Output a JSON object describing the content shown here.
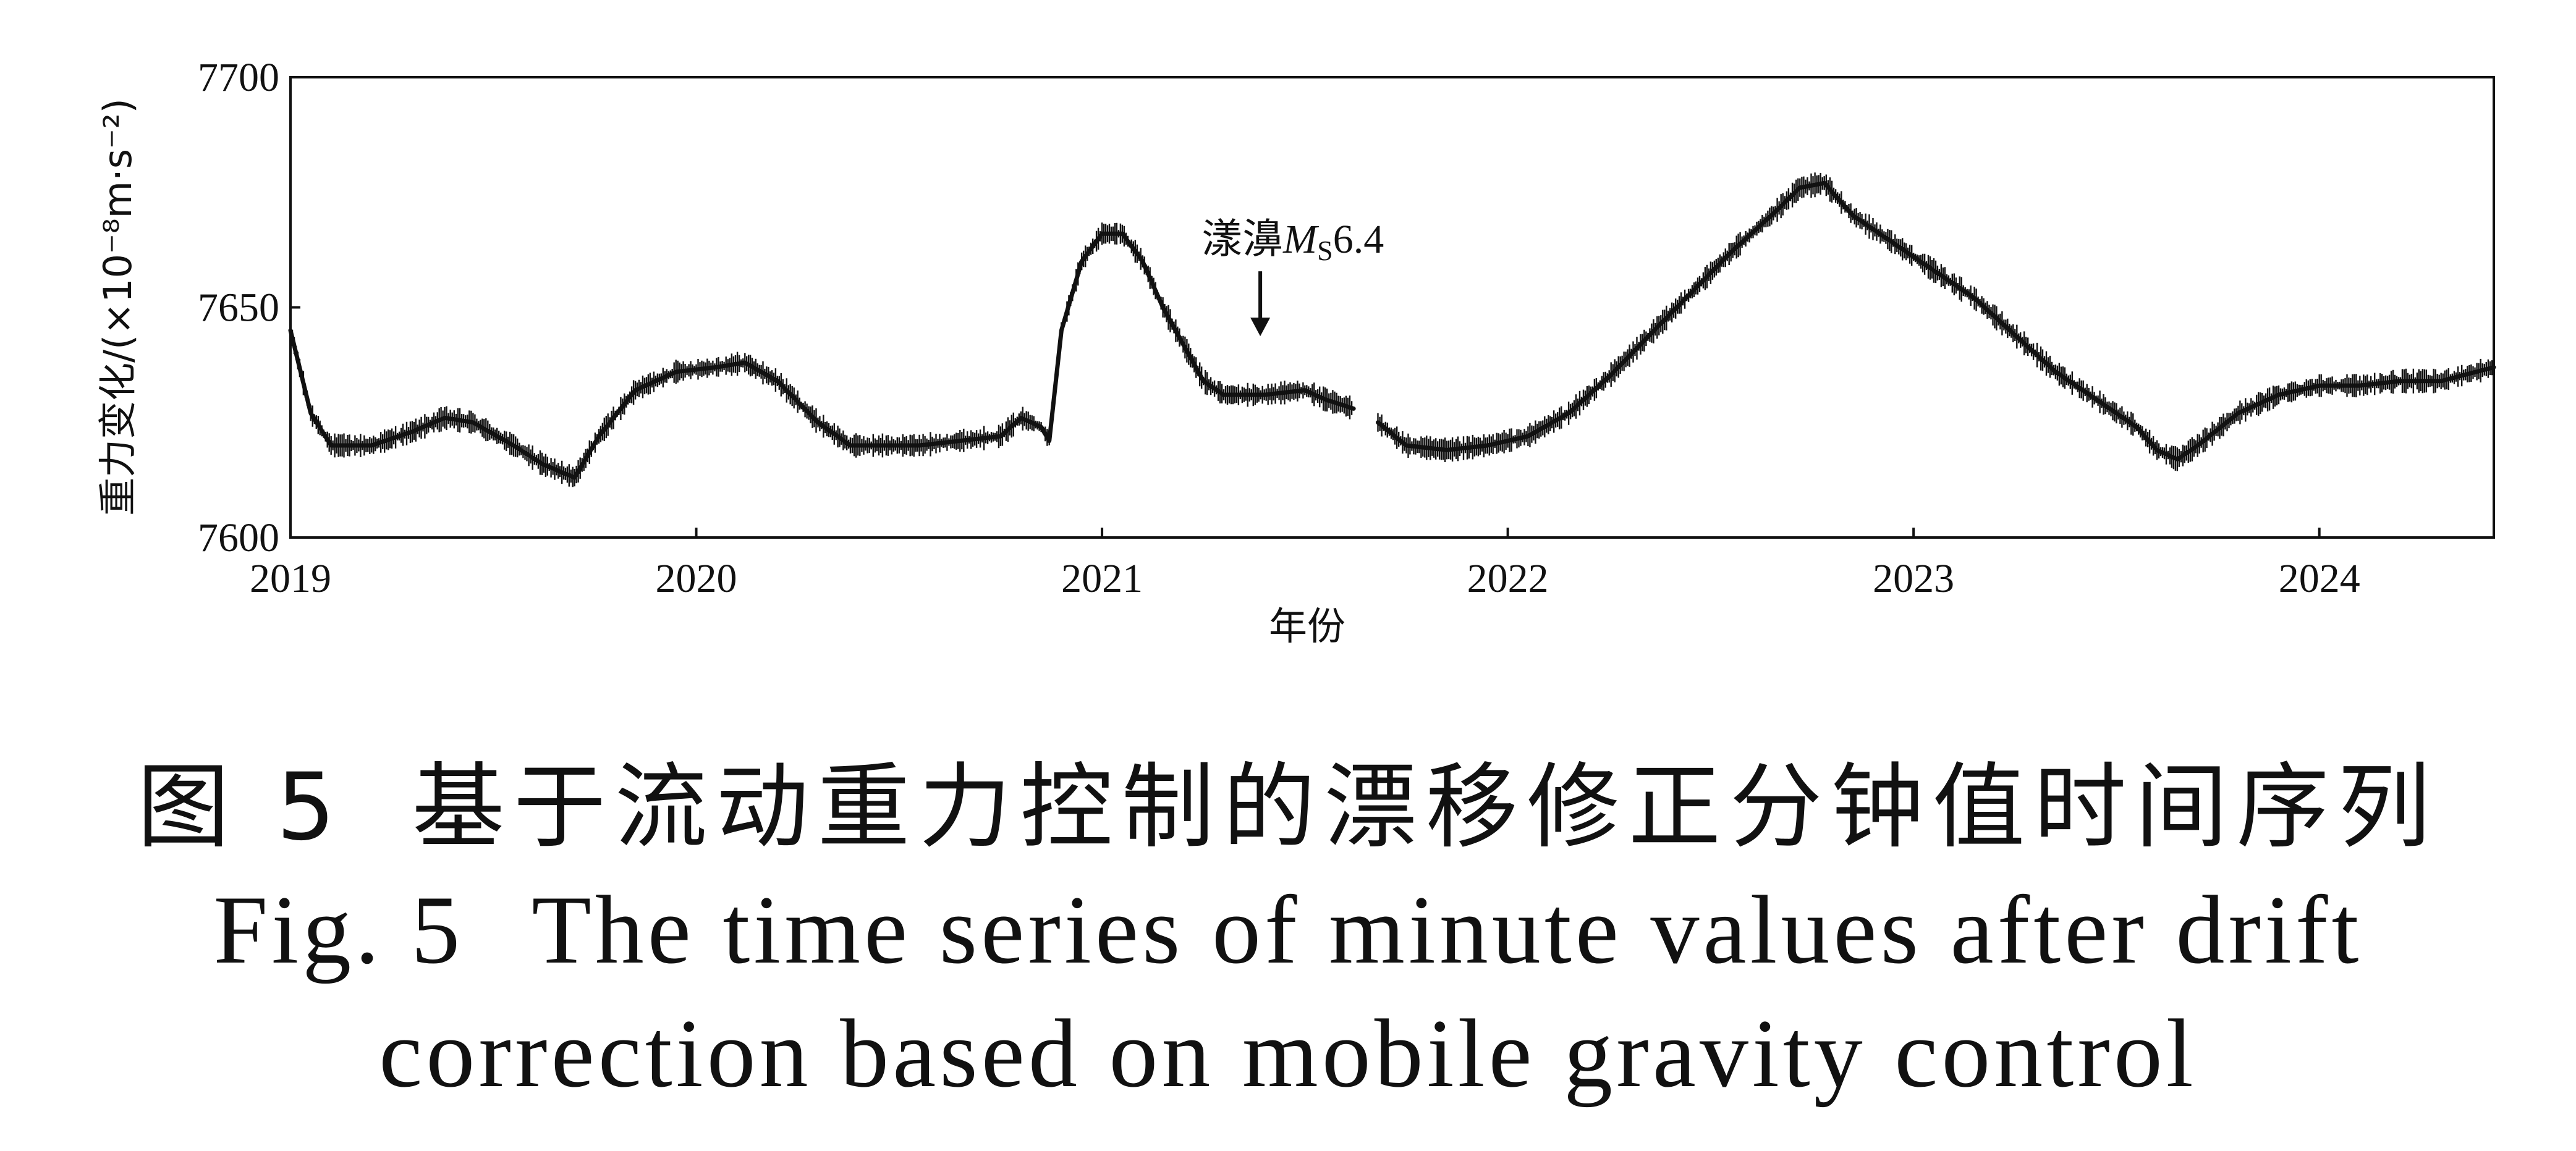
{
  "chart_data": {
    "type": "line",
    "xlabel": "年份",
    "ylabel": "重力变化/(×10⁻⁸m·s⁻²)",
    "xlim": [
      2019.0,
      2024.43
    ],
    "ylim": [
      7600,
      7700
    ],
    "xticks": [
      "2019",
      "2020",
      "2021",
      "2022",
      "2023",
      "2024"
    ],
    "yticks": [
      "7600",
      "7650",
      "7700"
    ],
    "grid": false,
    "legend": "none",
    "line_color": "#111111",
    "series": [
      {
        "segments": [
          {
            "x": [
              2019.0,
              2019.05,
              2019.1,
              2019.2,
              2019.3,
              2019.38,
              2019.45,
              2019.55,
              2019.62,
              2019.7,
              2019.76,
              2019.85,
              2019.95,
              2020.05,
              2020.12,
              2020.2,
              2020.3,
              2020.38,
              2020.45,
              2020.55,
              2020.65,
              2020.75,
              2020.8,
              2020.85,
              2020.87,
              2020.9,
              2020.95,
              2021.0,
              2021.05,
              2021.1,
              2021.15,
              2021.2,
              2021.25,
              2021.3,
              2021.4,
              2021.5,
              2021.55,
              2021.62
            ],
            "y": [
              7645,
              7627,
              7620,
              7620,
              7623,
              7626,
              7625,
              7620,
              7616,
              7613,
              7622,
              7632,
              7636,
              7637,
              7638,
              7634,
              7625,
              7620,
              7620,
              7620,
              7621,
              7622,
              7626,
              7624,
              7621,
              7645,
              7660,
              7666,
              7666,
              7660,
              7650,
              7642,
              7634,
              7631,
              7631,
              7632,
              7630,
              7628
            ]
          },
          {
            "x": [
              2021.68,
              2021.75,
              2021.85,
              2021.95,
              2022.05,
              2022.15,
              2022.25,
              2022.35,
              2022.45,
              2022.55,
              2022.65,
              2022.72,
              2022.78,
              2022.85,
              2022.95,
              2023.05,
              2023.15,
              2023.25,
              2023.35,
              2023.45,
              2023.55,
              2023.6,
              2023.65,
              2023.7,
              2023.8,
              2023.9,
              2024.0,
              2024.1,
              2024.2,
              2024.3,
              2024.43
            ],
            "y": [
              7625,
              7620,
              7619,
              7620,
              7622,
              7627,
              7635,
              7644,
              7653,
              7662,
              7670,
              7676,
              7677,
              7670,
              7664,
              7658,
              7652,
              7644,
              7636,
              7630,
              7624,
              7619,
              7617,
              7620,
              7627,
              7631,
              7633,
              7633,
              7634,
              7634,
              7637
            ]
          }
        ]
      }
    ],
    "annotations": [
      {
        "text_cn": "漾濞",
        "text_m": "M",
        "text_s": "S",
        "text_mag": "6.4",
        "x": 2021.39,
        "y": 7633
      }
    ]
  },
  "captions": {
    "cn_num": "图 5",
    "cn": "基于流动重力控制的漂移修正分钟值时间序列",
    "en_num": "Fig. 5",
    "en_line1": "The time series of minute values after drift",
    "en_line2": "correction based on mobile gravity control"
  }
}
